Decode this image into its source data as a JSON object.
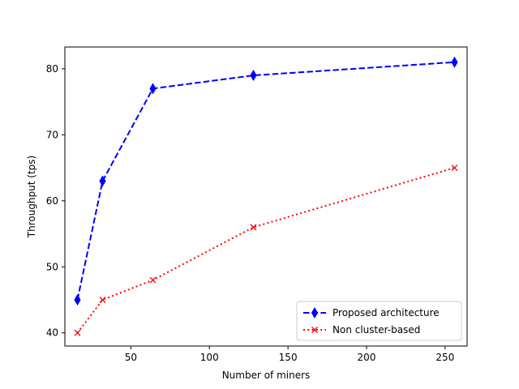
{
  "chart_data": {
    "type": "line",
    "title": "",
    "xlabel": "Number of miners",
    "ylabel": "Throughput (tps)",
    "xlim": [
      8,
      264
    ],
    "ylim": [
      38,
      83.3
    ],
    "xticks": [
      50,
      100,
      150,
      200,
      250
    ],
    "yticks": [
      40,
      50,
      60,
      70,
      80
    ],
    "grid": false,
    "legend_position": "lower-right",
    "series": [
      {
        "name": "Proposed architecture",
        "x": [
          16,
          32,
          64,
          128,
          256
        ],
        "y": [
          45,
          63,
          77,
          79,
          81
        ],
        "color": "#0000ff",
        "line_style": "dashed",
        "marker": "thin-diamond"
      },
      {
        "name": "Non cluster-based",
        "x": [
          16,
          32,
          64,
          128,
          256
        ],
        "y": [
          40,
          45,
          48,
          56,
          65
        ],
        "color": "#ff0000",
        "line_style": "dotted",
        "marker": "x"
      }
    ]
  }
}
